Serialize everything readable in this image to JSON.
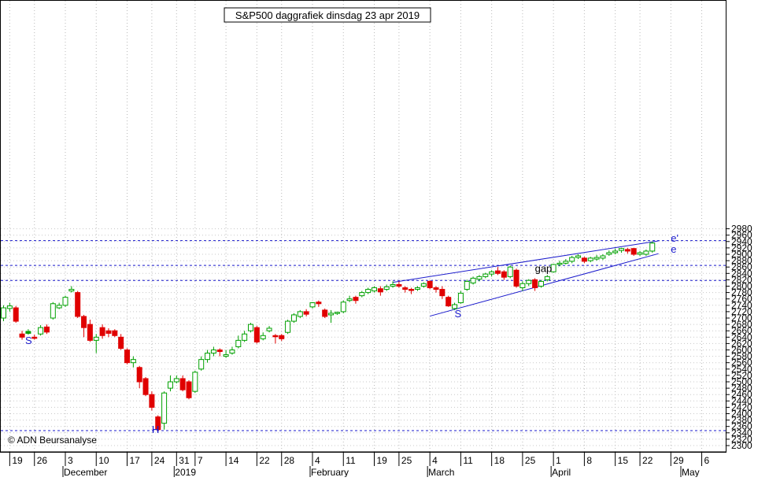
{
  "chart_data": {
    "type": "candlestick",
    "title": "S&P500 daggrafiek dinsdag 23 apr 2019",
    "copyright": "© ADN Beursanalyse",
    "y_axis": {
      "min": 2300,
      "max": 2980,
      "ticks": [
        2300,
        2320,
        2340,
        2360,
        2380,
        2400,
        2420,
        2440,
        2460,
        2480,
        2500,
        2520,
        2540,
        2560,
        2580,
        2600,
        2620,
        2640,
        2660,
        2680,
        2700,
        2720,
        2740,
        2760,
        2780,
        2800,
        2820,
        2840,
        2860,
        2880,
        2900,
        2920,
        2940,
        2960,
        2980
      ]
    },
    "x_axis": {
      "day_ticks": [
        {
          "label": "19",
          "index": 1
        },
        {
          "label": "26",
          "index": 5
        },
        {
          "label": "3",
          "index": 10
        },
        {
          "label": "10",
          "index": 15
        },
        {
          "label": "17",
          "index": 20
        },
        {
          "label": "24",
          "index": 24
        },
        {
          "label": "31",
          "index": 28
        },
        {
          "label": "7",
          "index": 31
        },
        {
          "label": "14",
          "index": 36
        },
        {
          "label": "22",
          "index": 41
        },
        {
          "label": "28",
          "index": 45
        },
        {
          "label": "4",
          "index": 50
        },
        {
          "label": "11",
          "index": 55
        },
        {
          "label": "19",
          "index": 60
        },
        {
          "label": "25",
          "index": 64
        },
        {
          "label": "4",
          "index": 69
        },
        {
          "label": "11",
          "index": 74
        },
        {
          "label": "18",
          "index": 79
        },
        {
          "label": "25",
          "index": 84
        },
        {
          "label": "1",
          "index": 89
        },
        {
          "label": "8",
          "index": 94
        },
        {
          "label": "15",
          "index": 99
        },
        {
          "label": "22",
          "index": 103
        },
        {
          "label": "29",
          "index": 108
        },
        {
          "label": "6",
          "index": 113
        }
      ],
      "month_labels": [
        {
          "label": "December",
          "index": 10
        },
        {
          "label": "2019",
          "index": 28
        },
        {
          "label": "February",
          "index": 50
        },
        {
          "label": "March",
          "index": 69
        },
        {
          "label": "April",
          "index": 89
        },
        {
          "label": "May",
          "index": 110
        }
      ]
    },
    "reference_lines": [
      2943,
      2865,
      2818,
      2347
    ],
    "trendlines": [
      {
        "name": "e'",
        "from": [
          63,
          2812
        ],
        "to": [
          106,
          2942
        ]
      },
      {
        "name": "e",
        "from": [
          69,
          2706
        ],
        "to": [
          106,
          2902
        ]
      }
    ],
    "annotations": [
      {
        "text": "S",
        "x": 3.5,
        "y": 2618
      },
      {
        "text": "H",
        "x": 24,
        "y": 2340
      },
      {
        "text": "S",
        "x": 73,
        "y": 2702
      },
      {
        "text": "gap",
        "x": 86,
        "y": 2844
      },
      {
        "text": "e'",
        "x": 108,
        "y": 2940
      },
      {
        "text": "e",
        "x": 108,
        "y": 2905
      }
    ],
    "candles": [
      [
        2700,
        2732,
        2740,
        2690
      ],
      [
        2730,
        2738,
        2748,
        2720
      ],
      [
        2732,
        2690,
        2738,
        2685
      ],
      [
        2650,
        2640,
        2660,
        2632
      ],
      [
        2652,
        2658,
        2665,
        2648
      ],
      [
        2640,
        2638,
        2648,
        2632
      ],
      [
        2650,
        2670,
        2678,
        2645
      ],
      [
        2672,
        2656,
        2680,
        2650
      ],
      [
        2700,
        2745,
        2750,
        2695
      ],
      [
        2732,
        2740,
        2748,
        2728
      ],
      [
        2740,
        2765,
        2770,
        2735
      ],
      [
        2785,
        2790,
        2800,
        2780
      ],
      [
        2780,
        2705,
        2785,
        2700
      ],
      [
        2705,
        2670,
        2710,
        2640
      ],
      [
        2680,
        2630,
        2695,
        2625
      ],
      [
        2630,
        2640,
        2650,
        2590
      ],
      [
        2670,
        2645,
        2680,
        2635
      ],
      [
        2660,
        2652,
        2668,
        2640
      ],
      [
        2660,
        2645,
        2665,
        2640
      ],
      [
        2640,
        2605,
        2650,
        2600
      ],
      [
        2600,
        2560,
        2605,
        2555
      ],
      [
        2560,
        2570,
        2580,
        2545
      ],
      [
        2545,
        2500,
        2550,
        2480
      ],
      [
        2510,
        2460,
        2515,
        2455
      ],
      [
        2460,
        2420,
        2470,
        2410
      ],
      [
        2390,
        2350,
        2395,
        2345
      ],
      [
        2370,
        2465,
        2470,
        2350
      ],
      [
        2480,
        2500,
        2520,
        2470
      ],
      [
        2500,
        2510,
        2520,
        2495
      ],
      [
        2510,
        2475,
        2520,
        2470
      ],
      [
        2500,
        2450,
        2505,
        2445
      ],
      [
        2470,
        2530,
        2535,
        2465
      ],
      [
        2540,
        2570,
        2580,
        2535
      ],
      [
        2570,
        2590,
        2600,
        2560
      ],
      [
        2590,
        2600,
        2610,
        2580
      ],
      [
        2600,
        2595,
        2605,
        2580
      ],
      [
        2580,
        2585,
        2600,
        2575
      ],
      [
        2590,
        2600,
        2610,
        2585
      ],
      [
        2610,
        2630,
        2645,
        2605
      ],
      [
        2630,
        2650,
        2660,
        2625
      ],
      [
        2660,
        2680,
        2685,
        2655
      ],
      [
        2670,
        2625,
        2675,
        2620
      ],
      [
        2635,
        2645,
        2655,
        2630
      ],
      [
        2660,
        2668,
        2675,
        2655
      ],
      [
        2645,
        2642,
        2650,
        2620
      ],
      [
        2645,
        2635,
        2650,
        2628
      ],
      [
        2655,
        2690,
        2695,
        2650
      ],
      [
        2690,
        2710,
        2715,
        2685
      ],
      [
        2705,
        2720,
        2725,
        2700
      ],
      [
        2720,
        2712,
        2728,
        2705
      ],
      [
        2735,
        2748,
        2750,
        2730
      ],
      [
        2750,
        2745,
        2755,
        2735
      ],
      [
        2725,
        2705,
        2730,
        2700
      ],
      [
        2710,
        2715,
        2725,
        2685
      ],
      [
        2715,
        2718,
        2720,
        2710
      ],
      [
        2720,
        2750,
        2755,
        2715
      ],
      [
        2755,
        2760,
        2770,
        2750
      ],
      [
        2765,
        2755,
        2770,
        2745
      ],
      [
        2770,
        2780,
        2785,
        2765
      ],
      [
        2780,
        2790,
        2795,
        2775
      ],
      [
        2785,
        2795,
        2800,
        2780
      ],
      [
        2792,
        2782,
        2800,
        2770
      ],
      [
        2790,
        2798,
        2805,
        2785
      ],
      [
        2800,
        2805,
        2815,
        2795
      ],
      [
        2805,
        2800,
        2815,
        2795
      ],
      [
        2795,
        2790,
        2800,
        2780
      ],
      [
        2790,
        2788,
        2795,
        2775
      ],
      [
        2790,
        2795,
        2800,
        2785
      ],
      [
        2800,
        2808,
        2812,
        2795
      ],
      [
        2815,
        2795,
        2818,
        2790
      ],
      [
        2795,
        2790,
        2800,
        2780
      ],
      [
        2790,
        2770,
        2800,
        2760
      ],
      [
        2765,
        2738,
        2770,
        2735
      ],
      [
        2730,
        2742,
        2748,
        2725
      ],
      [
        2748,
        2778,
        2785,
        2745
      ],
      [
        2790,
        2815,
        2820,
        2785
      ],
      [
        2810,
        2825,
        2830,
        2805
      ],
      [
        2822,
        2830,
        2835,
        2815
      ],
      [
        2830,
        2838,
        2842,
        2825
      ],
      [
        2838,
        2845,
        2850,
        2830
      ],
      [
        2848,
        2840,
        2860,
        2835
      ],
      [
        2845,
        2828,
        2850,
        2820
      ],
      [
        2830,
        2860,
        2865,
        2825
      ],
      [
        2850,
        2800,
        2855,
        2795
      ],
      [
        2795,
        2808,
        2815,
        2785
      ],
      [
        2808,
        2818,
        2822,
        2800
      ],
      [
        2820,
        2795,
        2825,
        2785
      ],
      [
        2800,
        2815,
        2820,
        2795
      ],
      [
        2820,
        2830,
        2835,
        2815
      ],
      [
        2845,
        2868,
        2870,
        2842
      ],
      [
        2868,
        2872,
        2880,
        2862
      ],
      [
        2872,
        2878,
        2885,
        2868
      ],
      [
        2878,
        2890,
        2895,
        2872
      ],
      [
        2890,
        2895,
        2900,
        2885
      ],
      [
        2888,
        2878,
        2892,
        2872
      ],
      [
        2880,
        2888,
        2892,
        2875
      ],
      [
        2885,
        2890,
        2898,
        2880
      ],
      [
        2888,
        2895,
        2900,
        2882
      ],
      [
        2900,
        2905,
        2912,
        2895
      ],
      [
        2905,
        2910,
        2918,
        2900
      ],
      [
        2912,
        2918,
        2920,
        2905
      ],
      [
        2915,
        2910,
        2920,
        2902
      ],
      [
        2918,
        2900,
        2920,
        2895
      ],
      [
        2900,
        2905,
        2910,
        2895
      ],
      [
        2900,
        2910,
        2915,
        2895
      ],
      [
        2910,
        2935,
        2940,
        2905
      ]
    ],
    "filled_green": [
      4,
      13,
      18,
      22,
      64,
      102
    ]
  }
}
